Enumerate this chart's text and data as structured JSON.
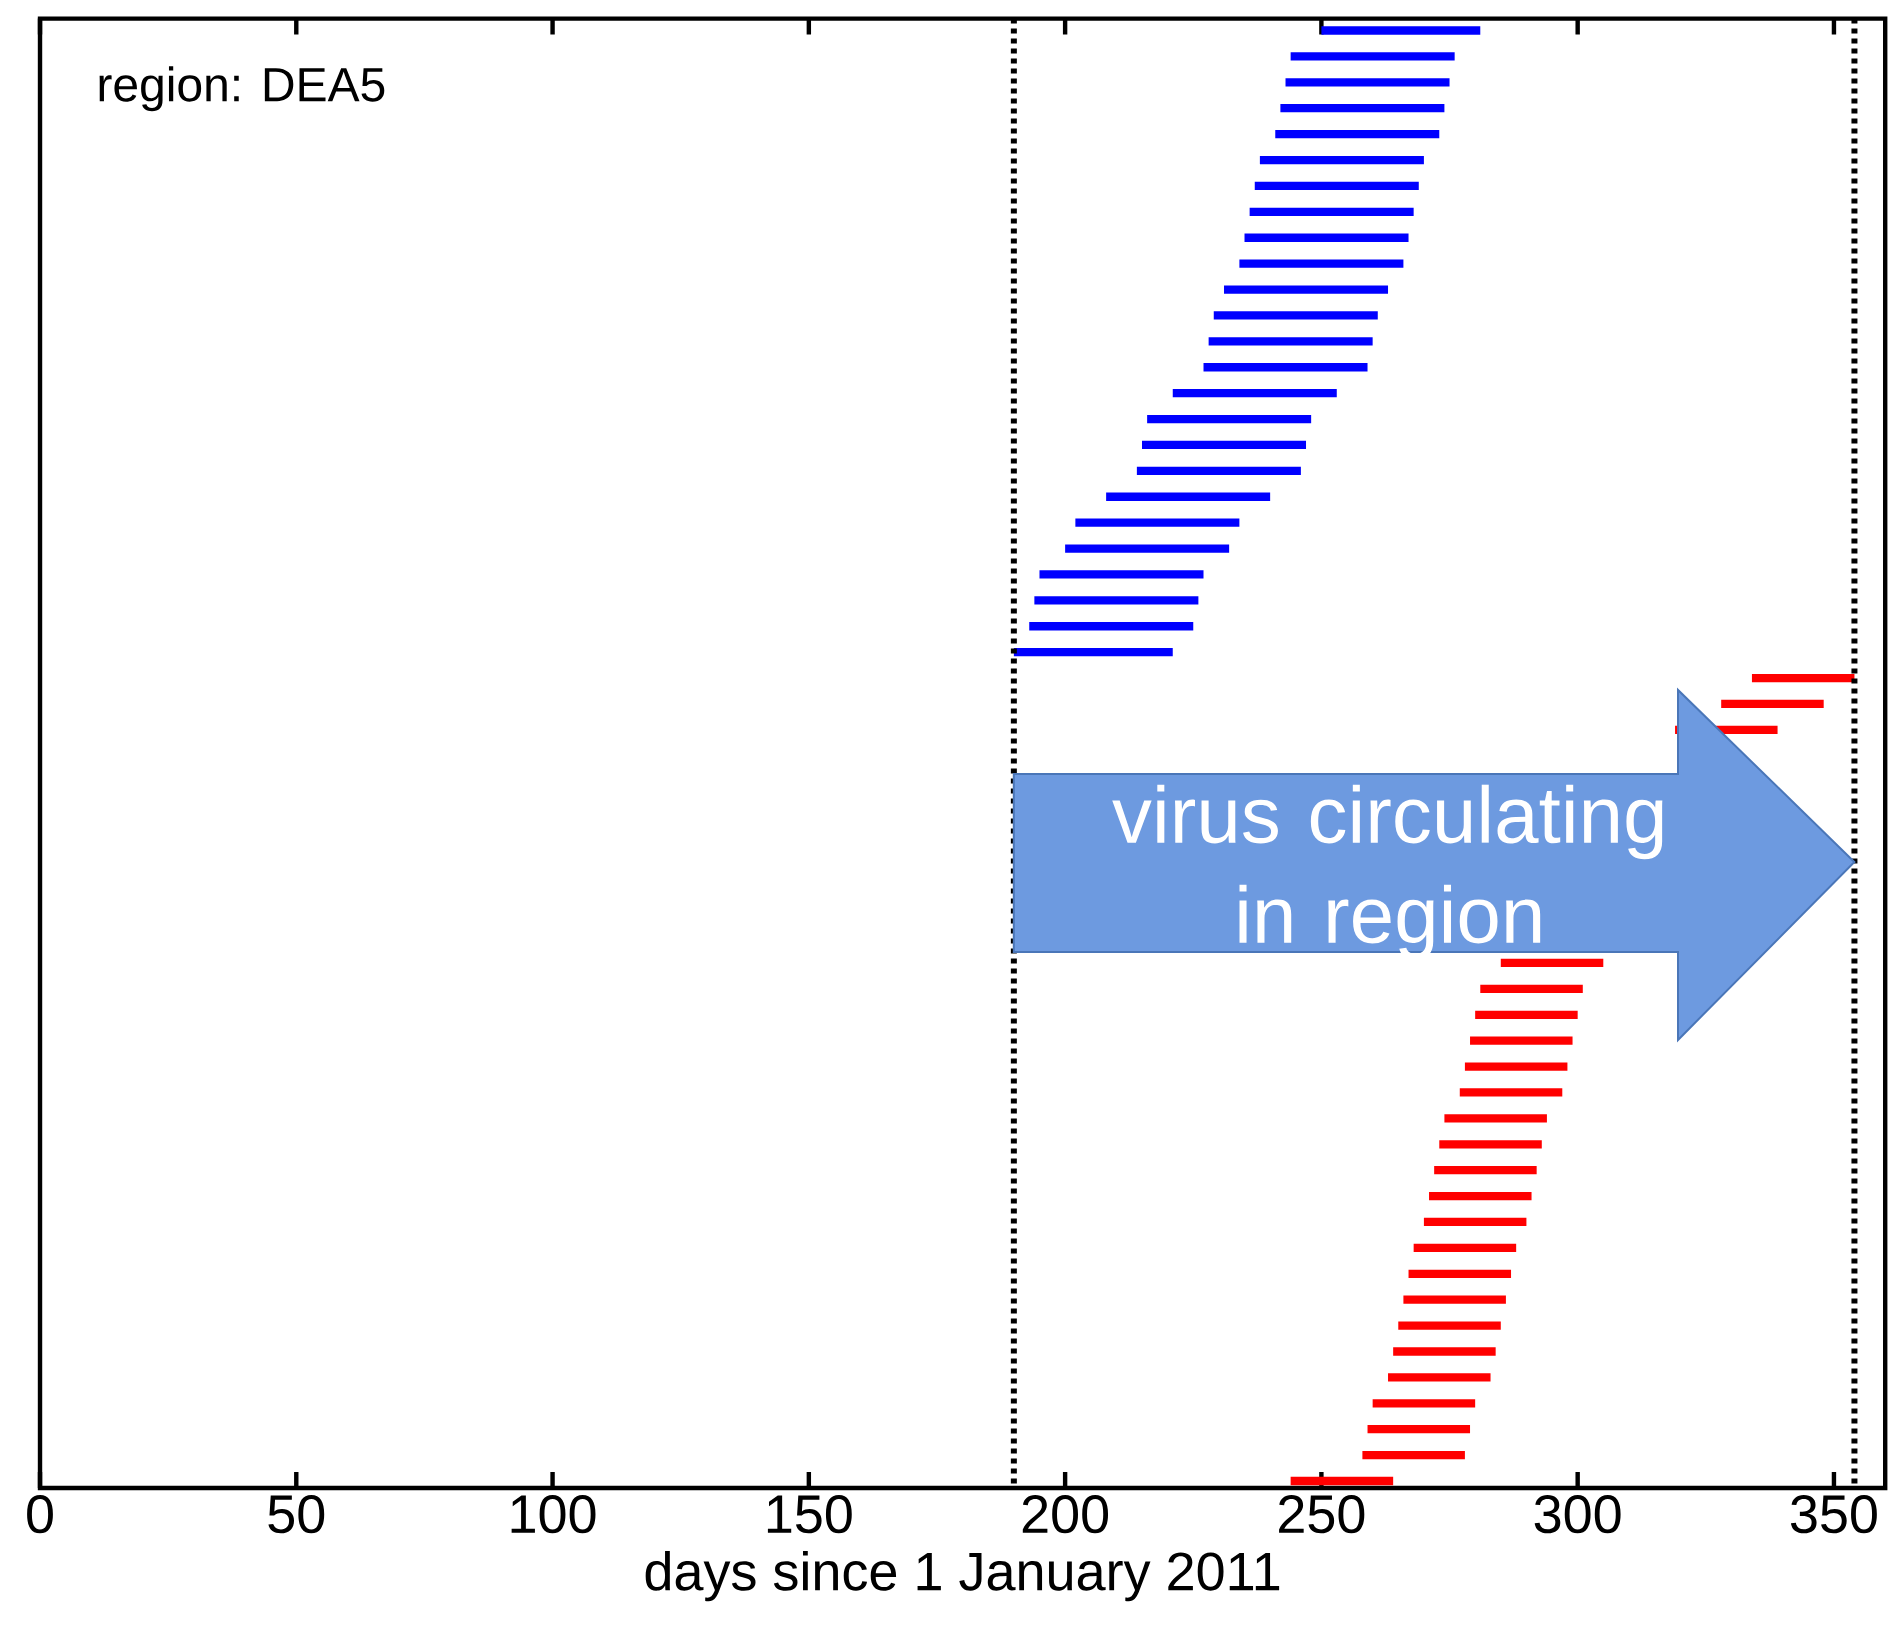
{
  "chart_data": {
    "type": "bar",
    "orientation": "horizontal",
    "categories": [
      null,
      null,
      null,
      null,
      null,
      null,
      null,
      null,
      null,
      null,
      null,
      null,
      null,
      null,
      null,
      null,
      null,
      null,
      null,
      null,
      null,
      null,
      null,
      null,
      null,
      null,
      null,
      null,
      null,
      null,
      null,
      null,
      null,
      null,
      null,
      null,
      null,
      null,
      null,
      null,
      null,
      null,
      null,
      null,
      null,
      null,
      null,
      null,
      null,
      null,
      null,
      null,
      null,
      null,
      null,
      null,
      null
    ],
    "series": [
      {
        "color": "#0000ff",
        "base": [
          250,
          244,
          243,
          242,
          241,
          238,
          237,
          236,
          235,
          234,
          231,
          229,
          228,
          227,
          221,
          216,
          215,
          214,
          208,
          202,
          200,
          195,
          194,
          193,
          190,
          null,
          null,
          null,
          null,
          null,
          null,
          null,
          null,
          null,
          null,
          null,
          null,
          null,
          null,
          null,
          null,
          null,
          null,
          null,
          null,
          null,
          null,
          null,
          null,
          null,
          null,
          null,
          null,
          null,
          null,
          null,
          null
        ],
        "values": [
          31,
          32,
          32,
          32,
          32,
          32,
          32,
          32,
          32,
          32,
          32,
          32,
          32,
          32,
          32,
          32,
          32,
          32,
          32,
          32,
          32,
          32,
          32,
          32,
          31,
          null,
          null,
          null,
          null,
          null,
          null,
          null,
          null,
          null,
          null,
          null,
          null,
          null,
          null,
          null,
          null,
          null,
          null,
          null,
          null,
          null,
          null,
          null,
          null,
          null,
          null,
          null,
          null,
          null,
          null,
          null,
          null
        ]
      },
      {
        "color": "#ff0000",
        "base": [
          null,
          null,
          null,
          null,
          null,
          null,
          null,
          null,
          null,
          null,
          null,
          null,
          null,
          null,
          null,
          null,
          null,
          null,
          null,
          null,
          null,
          null,
          null,
          null,
          null,
          334,
          328,
          319,
          null,
          null,
          null,
          null,
          null,
          null,
          null,
          null,
          285,
          281,
          280,
          279,
          278,
          277,
          274,
          273,
          272,
          271,
          270,
          268,
          267,
          266,
          265,
          264,
          263,
          260,
          259,
          258,
          244
        ],
        "values": [
          null,
          null,
          null,
          null,
          null,
          null,
          null,
          null,
          null,
          null,
          null,
          null,
          null,
          null,
          null,
          null,
          null,
          null,
          null,
          null,
          null,
          null,
          null,
          null,
          null,
          20,
          20,
          20,
          null,
          null,
          null,
          null,
          null,
          null,
          null,
          null,
          20,
          20,
          20,
          20,
          20,
          20,
          20,
          20,
          20,
          20,
          20,
          20,
          20,
          20,
          20,
          20,
          20,
          20,
          20,
          20,
          20
        ]
      }
    ],
    "xlim": [
      0,
      360
    ],
    "xticks": [
      0,
      50,
      100,
      150,
      200,
      250,
      300,
      350
    ],
    "xlabel": "days since 1 January 2011",
    "tick_labels": "x",
    "ref_lines": [
      {
        "axis": "x",
        "value": 190,
        "line_style": "dotted",
        "color": "#000000"
      },
      {
        "axis": "x",
        "value": 354,
        "line_style": "dotted",
        "color": "#000000"
      }
    ],
    "annotations": [
      "region: DEA5",
      "virus circulating in region"
    ]
  }
}
